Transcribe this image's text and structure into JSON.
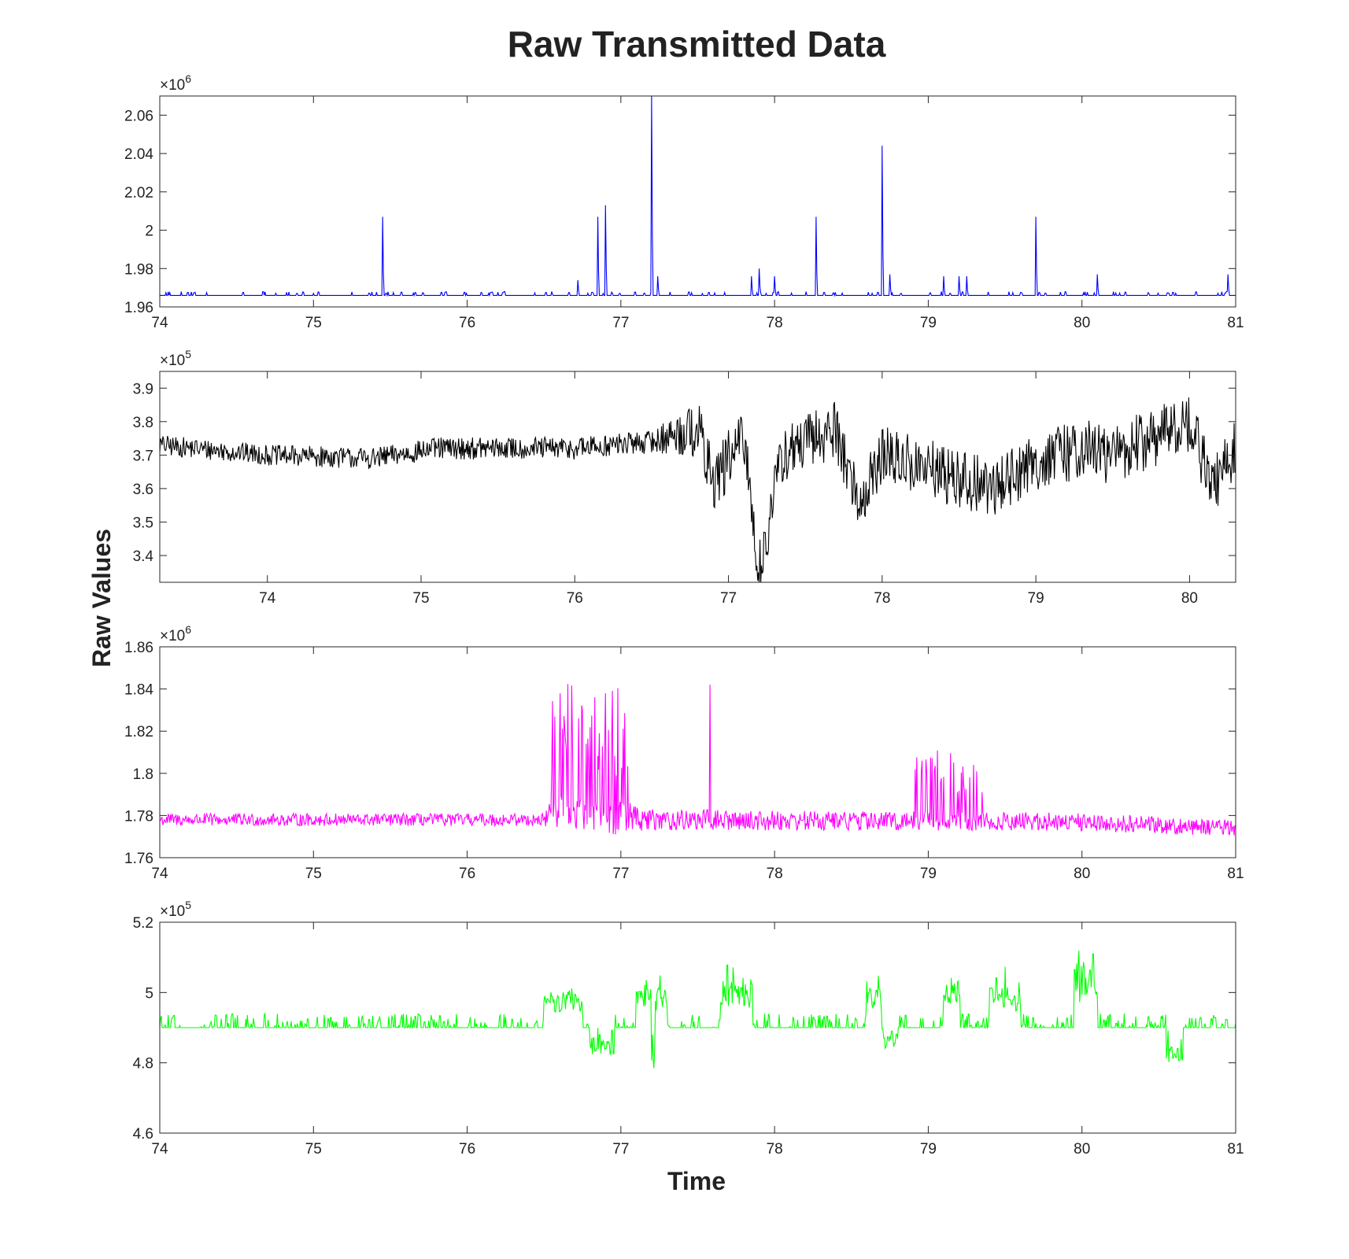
{
  "figure": {
    "title": "Raw Transmitted Data",
    "ylabel": "Raw Values",
    "xlabel": "Time"
  },
  "chart_data": [
    {
      "type": "line",
      "color": "#0000ff",
      "grid": false,
      "multiplier_label": "×10",
      "multiplier_exponent": "6",
      "xlim": [
        74,
        81
      ],
      "ylim": [
        1.96,
        2.07
      ],
      "x_ticks": [
        74,
        75,
        76,
        77,
        78,
        79,
        80,
        81
      ],
      "x_tick_labels": [
        "74",
        "75",
        "76",
        "77",
        "78",
        "79",
        "80",
        "81"
      ],
      "y_ticks": [
        1.96,
        1.98,
        2.0,
        2.02,
        2.04,
        2.06
      ],
      "y_tick_labels": [
        "1.96",
        "1.98",
        "2",
        "2.02",
        "2.04",
        "2.06"
      ],
      "baseline": 1.966,
      "noise": 0.002,
      "spikes": [
        [
          75.45,
          2.007
        ],
        [
          76.55,
          1.968
        ],
        [
          76.72,
          1.974
        ],
        [
          76.85,
          2.007
        ],
        [
          76.9,
          2.013
        ],
        [
          77.2,
          2.07
        ],
        [
          77.24,
          1.976
        ],
        [
          77.85,
          1.976
        ],
        [
          77.9,
          1.98
        ],
        [
          78.0,
          1.976
        ],
        [
          78.27,
          2.007
        ],
        [
          78.7,
          2.044
        ],
        [
          78.75,
          1.977
        ],
        [
          79.1,
          1.976
        ],
        [
          79.2,
          1.976
        ],
        [
          79.25,
          1.976
        ],
        [
          79.7,
          2.007
        ],
        [
          80.1,
          1.977
        ],
        [
          80.95,
          1.977
        ]
      ]
    },
    {
      "type": "line",
      "color": "#000000",
      "grid": false,
      "multiplier_label": "×10",
      "multiplier_exponent": "5",
      "xlim": [
        73.3,
        80.3
      ],
      "ylim": [
        3.32,
        3.95
      ],
      "x_ticks": [
        74,
        75,
        76,
        77,
        78,
        79,
        80
      ],
      "x_tick_labels": [
        "74",
        "75",
        "76",
        "77",
        "78",
        "79",
        "80"
      ],
      "y_ticks": [
        3.4,
        3.5,
        3.6,
        3.7,
        3.8,
        3.9
      ],
      "y_tick_labels": [
        "3.4",
        "3.5",
        "3.6",
        "3.7",
        "3.8",
        "3.9"
      ],
      "trend": [
        [
          73.3,
          3.73
        ],
        [
          74.0,
          3.7
        ],
        [
          74.7,
          3.69
        ],
        [
          75.1,
          3.72
        ],
        [
          76.0,
          3.72
        ],
        [
          76.5,
          3.74
        ],
        [
          76.8,
          3.78
        ],
        [
          76.9,
          3.62
        ],
        [
          77.1,
          3.75
        ],
        [
          77.2,
          3.35
        ],
        [
          77.35,
          3.7
        ],
        [
          77.7,
          3.78
        ],
        [
          77.85,
          3.55
        ],
        [
          78.0,
          3.7
        ],
        [
          78.7,
          3.6
        ],
        [
          79.0,
          3.68
        ],
        [
          79.3,
          3.72
        ],
        [
          79.5,
          3.7
        ],
        [
          80.0,
          3.8
        ],
        [
          80.15,
          3.6
        ],
        [
          80.3,
          3.72
        ]
      ],
      "noise": [
        [
          73.3,
          0.03
        ],
        [
          76.5,
          0.035
        ],
        [
          76.8,
          0.09
        ],
        [
          80.3,
          0.09
        ]
      ]
    },
    {
      "type": "line",
      "color": "#ff00ff",
      "grid": false,
      "multiplier_label": "×10",
      "multiplier_exponent": "6",
      "xlim": [
        74,
        81
      ],
      "ylim": [
        1.76,
        1.86
      ],
      "x_ticks": [
        74,
        75,
        76,
        77,
        78,
        79,
        80,
        81
      ],
      "x_tick_labels": [
        "74",
        "75",
        "76",
        "77",
        "78",
        "79",
        "80",
        "81"
      ],
      "y_ticks": [
        1.76,
        1.78,
        1.8,
        1.82,
        1.84,
        1.86
      ],
      "y_tick_labels": [
        "1.76",
        "1.78",
        "1.8",
        "1.82",
        "1.84",
        "1.86"
      ],
      "trend": [
        [
          74.0,
          1.778
        ],
        [
          76.5,
          1.778
        ],
        [
          76.55,
          1.782
        ],
        [
          77.1,
          1.778
        ],
        [
          80.0,
          1.777
        ],
        [
          81.0,
          1.774
        ]
      ],
      "noise": [
        [
          74.0,
          0.003
        ],
        [
          76.5,
          0.003
        ],
        [
          76.55,
          0.008
        ],
        [
          77.1,
          0.008
        ],
        [
          77.15,
          0.005
        ],
        [
          81.0,
          0.004
        ]
      ],
      "bursts": [
        [
          76.55,
          77.05,
          1.843
        ],
        [
          78.9,
          79.4,
          1.816
        ]
      ],
      "spikes": [
        [
          77.58,
          1.842
        ]
      ]
    },
    {
      "type": "line",
      "color": "#00ff00",
      "grid": false,
      "multiplier_label": "×10",
      "multiplier_exponent": "5",
      "xlim": [
        74,
        81
      ],
      "ylim": [
        4.6,
        5.2
      ],
      "x_ticks": [
        74,
        75,
        76,
        77,
        78,
        79,
        80,
        81
      ],
      "x_tick_labels": [
        "74",
        "75",
        "76",
        "77",
        "78",
        "79",
        "80",
        "81"
      ],
      "y_ticks": [
        4.6,
        4.8,
        5.0,
        5.2
      ],
      "y_tick_labels": [
        "4.6",
        "4.8",
        "5",
        "5.2"
      ],
      "baseline": 4.9,
      "noise": 0.02,
      "excursions": [
        [
          76.5,
          76.75,
          0.1
        ],
        [
          76.8,
          76.95,
          -0.08
        ],
        [
          77.1,
          77.3,
          0.12
        ],
        [
          77.2,
          77.22,
          -0.25
        ],
        [
          77.65,
          77.85,
          0.14
        ],
        [
          78.6,
          78.7,
          0.12
        ],
        [
          78.7,
          78.8,
          -0.06
        ],
        [
          79.1,
          79.2,
          0.14
        ],
        [
          79.4,
          79.5,
          0.12
        ],
        [
          79.5,
          79.6,
          0.11
        ],
        [
          79.95,
          80.1,
          0.18
        ],
        [
          80.55,
          80.65,
          -0.1
        ]
      ]
    }
  ]
}
